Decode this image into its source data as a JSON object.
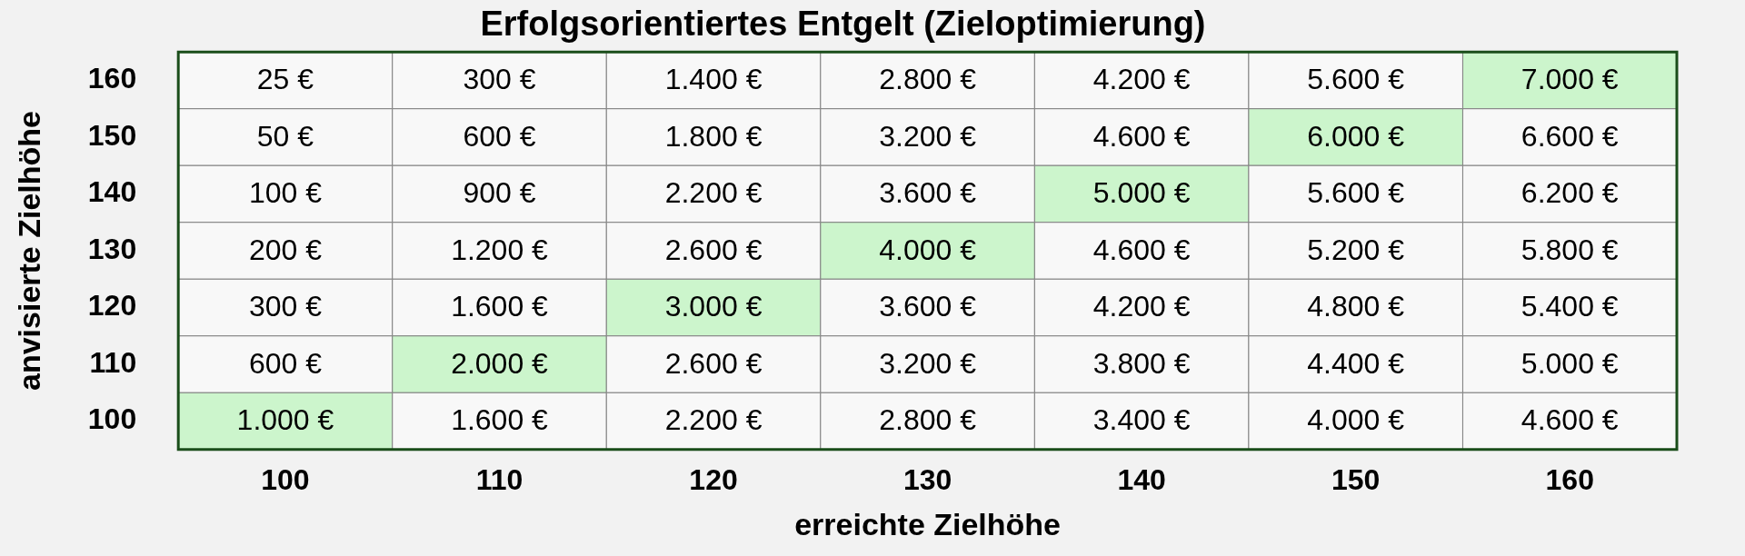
{
  "chart_data": {
    "type": "heatmap",
    "title": "Erfolgsorientiertes Entgelt (Zieloptimierung)",
    "xlabel": "erreichte Zielhöhe",
    "ylabel": "anvisierte Zielhöhe",
    "categories": [
      "100",
      "110",
      "120",
      "130",
      "140",
      "150",
      "160"
    ],
    "y_categories": [
      "160",
      "150",
      "140",
      "130",
      "120",
      "110",
      "100"
    ],
    "cells": [
      [
        25,
        300,
        1400,
        2800,
        4200,
        5600,
        7000
      ],
      [
        50,
        600,
        1800,
        3200,
        4600,
        6000,
        6600
      ],
      [
        100,
        900,
        2200,
        3600,
        5000,
        5600,
        6200
      ],
      [
        200,
        1200,
        2600,
        4000,
        4600,
        5200,
        5800
      ],
      [
        300,
        1600,
        3000,
        3600,
        4200,
        4800,
        5400
      ],
      [
        600,
        2000,
        2600,
        3200,
        3800,
        4400,
        5000
      ],
      [
        1000,
        1600,
        2200,
        2800,
        3400,
        4000,
        4600
      ]
    ],
    "cell_labels": [
      [
        "25 €",
        "300 €",
        "1.400 €",
        "2.800 €",
        "4.200 €",
        "5.600 €",
        "7.000 €"
      ],
      [
        "50 €",
        "600 €",
        "1.800 €",
        "3.200 €",
        "4.600 €",
        "6.000 €",
        "6.600 €"
      ],
      [
        "100 €",
        "900 €",
        "2.200 €",
        "3.600 €",
        "5.000 €",
        "5.600 €",
        "6.200 €"
      ],
      [
        "200 €",
        "1.200 €",
        "2.600 €",
        "4.000 €",
        "4.600 €",
        "5.200 €",
        "5.800 €"
      ],
      [
        "300 €",
        "1.600 €",
        "3.000 €",
        "3.600 €",
        "4.200 €",
        "4.800 €",
        "5.400 €"
      ],
      [
        "600 €",
        "2.000 €",
        "2.600 €",
        "3.200 €",
        "3.800 €",
        "4.400 €",
        "5.000 €"
      ],
      [
        "1.000 €",
        "1.600 €",
        "2.200 €",
        "2.800 €",
        "3.400 €",
        "4.000 €",
        "4.600 €"
      ]
    ],
    "colors": [
      [
        "#f8f8f8",
        "#f8f8f8",
        "#f8f8f8",
        "#f8f8f8",
        "#f8f8f8",
        "#f8f8f8",
        "#ccf5cc"
      ],
      [
        "#f8f8f8",
        "#f8f8f8",
        "#f8f8f8",
        "#f8f8f8",
        "#f8f8f8",
        "#ccf5cc",
        "#f8f8f8"
      ],
      [
        "#f8f8f8",
        "#f8f8f8",
        "#f8f8f8",
        "#f8f8f8",
        "#ccf5cc",
        "#f8f8f8",
        "#f8f8f8"
      ],
      [
        "#f8f8f8",
        "#f8f8f8",
        "#f8f8f8",
        "#ccf5cc",
        "#f8f8f8",
        "#f8f8f8",
        "#f8f8f8"
      ],
      [
        "#f8f8f8",
        "#f8f8f8",
        "#ccf5cc",
        "#f8f8f8",
        "#f8f8f8",
        "#f8f8f8",
        "#f8f8f8"
      ],
      [
        "#f8f8f8",
        "#ccf5cc",
        "#f8f8f8",
        "#f8f8f8",
        "#f8f8f8",
        "#f8f8f8",
        "#f8f8f8"
      ],
      [
        "#ccf5cc",
        "#f8f8f8",
        "#f8f8f8",
        "#f8f8f8",
        "#f8f8f8",
        "#f8f8f8",
        "#f8f8f8"
      ]
    ]
  }
}
